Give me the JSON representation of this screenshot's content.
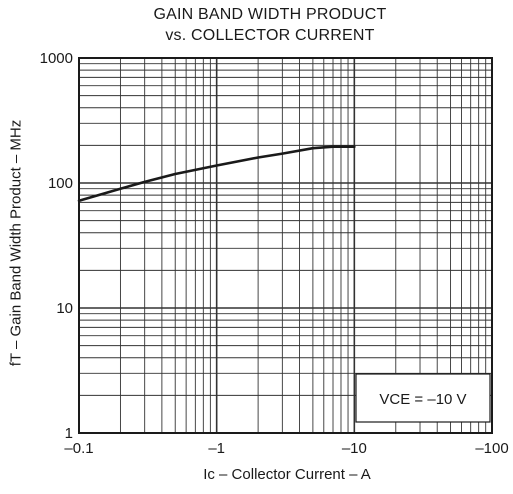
{
  "chart_data": {
    "type": "line",
    "title": "GAIN BAND WIDTH PRODUCT",
    "subtitle": "vs. COLLECTOR CURRENT",
    "xlabel": "Ic – Collector Current – A",
    "ylabel": "fT – Gain Band Width Product – MHz",
    "x_scale": "log",
    "y_scale": "log",
    "x_direction": "negative (magnitude increasing to the right)",
    "xlim": [
      -0.1,
      -100
    ],
    "ylim": [
      1,
      1000
    ],
    "x_ticks": [
      "–0.1",
      "–1",
      "–10",
      "–100"
    ],
    "y_ticks": [
      "1",
      "10",
      "100",
      "1000"
    ],
    "grid": true,
    "series": [
      {
        "x": [
          -0.1,
          -0.2,
          -0.3,
          -0.5,
          -1,
          -2,
          -3,
          -5,
          -7,
          -10
        ],
        "y": [
          72,
          90,
          102,
          118,
          138,
          160,
          172,
          190,
          195,
          195
        ]
      }
    ],
    "annotations": [
      {
        "text": "VCE = –10 V",
        "position": "bottom-right",
        "boxed": true
      }
    ]
  },
  "colors": {
    "line": "#1a1a1a",
    "grid": "#333333",
    "background": "#ffffff"
  }
}
